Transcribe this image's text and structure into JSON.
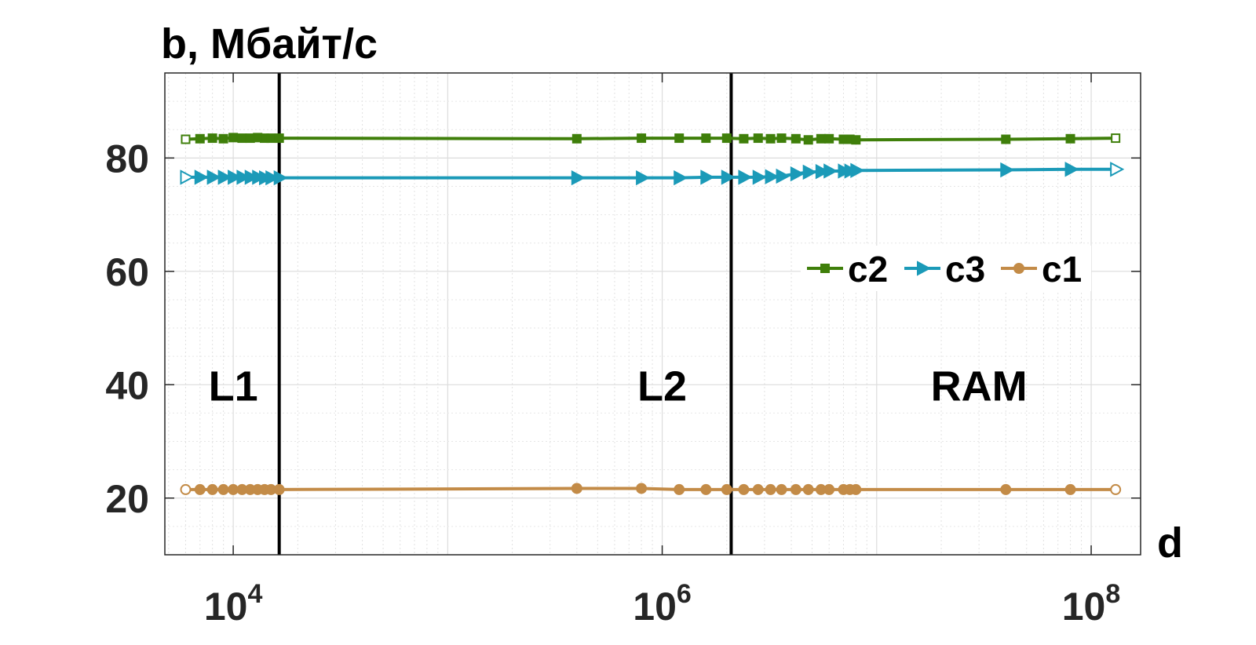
{
  "chart_data": {
    "type": "line",
    "xlabel": "d",
    "ylabel": "b, Мбайт/с",
    "xscale": "log",
    "xlim": [
      4800,
      170000000
    ],
    "ylim": [
      10,
      95
    ],
    "xticks": [
      10000,
      1000000,
      100000000
    ],
    "xtick_labels": [
      {
        "base": "10",
        "exp": "4"
      },
      {
        "base": "10",
        "exp": "6"
      },
      {
        "base": "10",
        "exp": "8"
      }
    ],
    "yticks": [
      20,
      40,
      60,
      80
    ],
    "ytick_labels": [
      "20",
      "40",
      "60",
      "80"
    ],
    "grid": true,
    "legend_position": "right, middle",
    "vlines": [
      16384,
      2097152
    ],
    "regions": [
      {
        "label": "L1",
        "x": 10000,
        "y": 40
      },
      {
        "label": "L2",
        "x": 1000000,
        "y": 40
      },
      {
        "label": "RAM",
        "x": 30000000,
        "y": 40
      }
    ],
    "series": [
      {
        "name": "c2",
        "color": "#3f7f0a",
        "marker": "square",
        "x": [
          6000,
          7000,
          8000,
          9000,
          10000,
          11000,
          12000,
          13000,
          14000,
          15000,
          16384,
          400000,
          800000,
          1200000,
          1600000,
          2000000,
          2400000,
          2800000,
          3200000,
          3600000,
          4200000,
          4800000,
          5500000,
          6000000,
          7000000,
          7500000,
          8000000,
          40000000,
          80000000,
          130000000
        ],
        "y": [
          83.3,
          83.4,
          83.5,
          83.4,
          83.6,
          83.5,
          83.5,
          83.6,
          83.5,
          83.5,
          83.5,
          83.4,
          83.5,
          83.5,
          83.5,
          83.5,
          83.4,
          83.5,
          83.4,
          83.5,
          83.4,
          83.2,
          83.4,
          83.4,
          83.3,
          83.3,
          83.2,
          83.3,
          83.4,
          83.5
        ]
      },
      {
        "name": "c3",
        "color": "#1b9ab8",
        "marker": "triangle-right",
        "x": [
          6000,
          7000,
          8000,
          9000,
          10000,
          11000,
          12000,
          13000,
          14000,
          15000,
          16384,
          400000,
          800000,
          1200000,
          1600000,
          2000000,
          2400000,
          2800000,
          3200000,
          3600000,
          4200000,
          4800000,
          5500000,
          6000000,
          7000000,
          7500000,
          8000000,
          40000000,
          80000000,
          130000000
        ],
        "y": [
          76.6,
          76.6,
          76.6,
          76.6,
          76.6,
          76.6,
          76.6,
          76.6,
          76.5,
          76.5,
          76.5,
          76.5,
          76.5,
          76.5,
          76.6,
          76.6,
          76.6,
          76.6,
          76.7,
          76.8,
          77.2,
          77.5,
          77.6,
          77.7,
          77.7,
          77.7,
          77.8,
          77.9,
          78.0,
          78.0
        ]
      },
      {
        "name": "c1",
        "color": "#c38b47",
        "marker": "circle",
        "x": [
          6000,
          7000,
          8000,
          9000,
          10000,
          11000,
          12000,
          13000,
          14000,
          15000,
          16384,
          400000,
          800000,
          1200000,
          1600000,
          2000000,
          2400000,
          2800000,
          3200000,
          3600000,
          4200000,
          4800000,
          5500000,
          6000000,
          7000000,
          7500000,
          8000000,
          40000000,
          80000000,
          130000000
        ],
        "y": [
          21.5,
          21.5,
          21.5,
          21.5,
          21.5,
          21.5,
          21.5,
          21.5,
          21.5,
          21.5,
          21.5,
          21.7,
          21.7,
          21.5,
          21.5,
          21.5,
          21.5,
          21.5,
          21.5,
          21.5,
          21.5,
          21.5,
          21.5,
          21.5,
          21.5,
          21.5,
          21.5,
          21.5,
          21.5,
          21.5
        ]
      }
    ]
  }
}
